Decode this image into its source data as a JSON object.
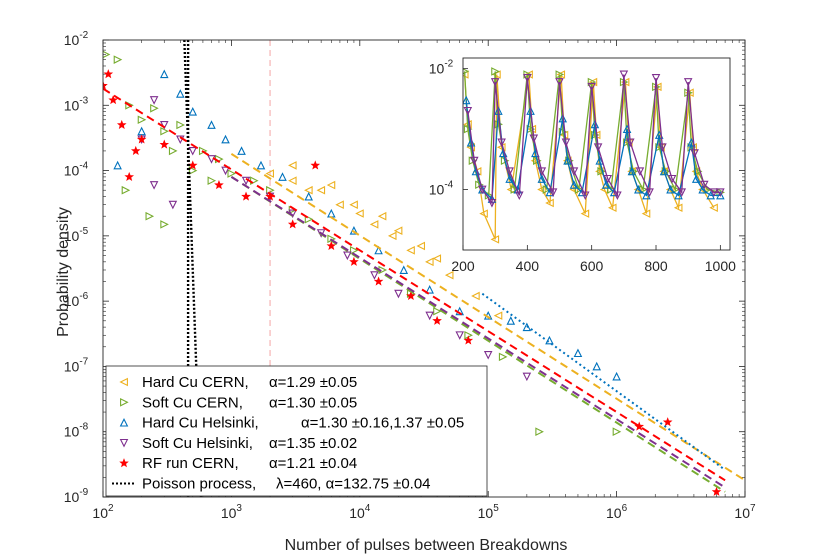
{
  "chart_data": [
    {
      "type": "scatter",
      "scale": "log-log",
      "xlabel": "Number of pulses between Breakdowns",
      "ylabel": "Probability density",
      "xlim": [
        100,
        10000000
      ],
      "ylim": [
        1e-09,
        0.01
      ],
      "x_ticks": [
        {
          "value": 100,
          "base": "10",
          "exp": "2"
        },
        {
          "value": 1000,
          "base": "10",
          "exp": "3"
        },
        {
          "value": 10000,
          "base": "10",
          "exp": "4"
        },
        {
          "value": 100000,
          "base": "10",
          "exp": "5"
        },
        {
          "value": 1000000,
          "base": "10",
          "exp": "6"
        },
        {
          "value": 10000000,
          "base": "10",
          "exp": "7"
        }
      ],
      "y_ticks": [
        {
          "value": 1e-09,
          "base": "10",
          "exp": "-9"
        },
        {
          "value": 1e-08,
          "base": "10",
          "exp": "-8"
        },
        {
          "value": 1e-07,
          "base": "10",
          "exp": "-7"
        },
        {
          "value": 1e-06,
          "base": "10",
          "exp": "-6"
        },
        {
          "value": 1e-05,
          "base": "10",
          "exp": "-5"
        },
        {
          "value": 0.0001,
          "base": "10",
          "exp": "-4"
        },
        {
          "value": 0.001,
          "base": "10",
          "exp": "-3"
        },
        {
          "value": 0.01,
          "base": "10",
          "exp": "-2"
        }
      ],
      "vertical_reference_lines": [
        {
          "x": 460,
          "style": "dotted",
          "color": "#000000"
        },
        {
          "x": 2000,
          "style": "dashed",
          "color": "#f4a6a6"
        }
      ],
      "series": [
        {
          "name": "Hard Cu CERN",
          "marker": "triangle-left",
          "color": "#EDB120",
          "fit": {
            "x": [
              1000,
              10000000
            ],
            "y": [
              0.00018,
              1.8e-09
            ]
          },
          "points": [
            [
              2000,
              9e-05
            ],
            [
              3000,
              7e-05
            ],
            [
              4000,
              5e-05
            ],
            [
              5000,
              5e-05
            ],
            [
              7000,
              3e-05
            ],
            [
              10000,
              2.2e-05
            ],
            [
              13000,
              1.5e-05
            ],
            [
              18000,
              1e-05
            ],
            [
              25000,
              6e-06
            ],
            [
              35000,
              4e-06
            ],
            [
              50000,
              2.5e-06
            ],
            [
              80000,
              1.2e-06
            ],
            [
              120000,
              6e-07
            ],
            [
              3000,
              0.00012
            ],
            [
              6000,
              6e-05
            ],
            [
              9000,
              3e-05
            ],
            [
              15000,
              2e-05
            ],
            [
              20000,
              1.2e-05
            ],
            [
              30000,
              7e-06
            ],
            [
              40000,
              4.5e-06
            ]
          ]
        },
        {
          "name": "Soft Cu CERN",
          "marker": "triangle-right",
          "color": "#77AC30",
          "fit": {
            "x": [
              1000,
              7000000
            ],
            "y": [
              8e-05,
              1.2e-09
            ]
          },
          "points": [
            [
              105,
              0.006
            ],
            [
              130,
              0.005
            ],
            [
              160,
              0.001
            ],
            [
              200,
              0.0006
            ],
            [
              250,
              0.0009
            ],
            [
              300,
              0.0004
            ],
            [
              350,
              0.0002
            ],
            [
              400,
              0.0005
            ],
            [
              500,
              0.0001
            ],
            [
              600,
              0.0002
            ],
            [
              700,
              7e-05
            ],
            [
              800,
              0.00015
            ],
            [
              1000,
              9e-05
            ],
            [
              1500,
              7e-05
            ],
            [
              2000,
              5e-05
            ],
            [
              3000,
              2.5e-05
            ],
            [
              4000,
              1.8e-05
            ],
            [
              6000,
              9e-06
            ],
            [
              9000,
              6e-06
            ],
            [
              15000,
              3e-06
            ],
            [
              25000,
              1.3e-06
            ],
            [
              40000,
              7e-07
            ],
            [
              70000,
              3e-07
            ],
            [
              130000,
              1.4e-07
            ],
            [
              250000,
              1e-08
            ],
            [
              1000000,
              1e-08
            ],
            [
              150,
              5e-05
            ],
            [
              230,
              2e-05
            ],
            [
              300,
              1.5e-05
            ]
          ]
        },
        {
          "name": "Hard Cu Helsinki",
          "marker": "triangle-up",
          "color": "#0072BD",
          "fit": {
            "x": [
              90000,
              7000000
            ],
            "y": [
              1.3e-06,
              2.6e-09
            ]
          },
          "points": [
            [
              300,
              0.003
            ],
            [
              400,
              0.0015
            ],
            [
              500,
              0.0008
            ],
            [
              700,
              0.0005
            ],
            [
              900,
              0.0003
            ],
            [
              1200,
              0.0002
            ],
            [
              1700,
              0.00012
            ],
            [
              2500,
              8e-05
            ],
            [
              4000,
              4e-05
            ],
            [
              6000,
              2.2e-05
            ],
            [
              9000,
              1.2e-05
            ],
            [
              14000,
              6e-06
            ],
            [
              22000,
              3e-06
            ],
            [
              35000,
              1.5e-06
            ],
            [
              60000,
              7e-07
            ],
            [
              100000,
              6e-07
            ],
            [
              150000,
              5e-07
            ],
            [
              200000,
              4e-07
            ],
            [
              300000,
              2.5e-07
            ],
            [
              500000,
              1.6e-07
            ],
            [
              700000,
              1e-07
            ],
            [
              1000000,
              7e-08
            ],
            [
              130,
              0.00012
            ],
            [
              200,
              0.0004
            ]
          ]
        },
        {
          "name": "Soft Cu Helsinki",
          "marker": "triangle-down",
          "color": "#7E2F8E",
          "fit": {
            "x": [
              1000,
              7000000
            ],
            "y": [
              8e-05,
              1.4e-09
            ]
          },
          "points": [
            [
              200,
              0.0003
            ],
            [
              250,
              0.0012
            ],
            [
              300,
              0.0005
            ],
            [
              400,
              0.0003
            ],
            [
              500,
              0.0002
            ],
            [
              700,
              0.00015
            ],
            [
              900,
              0.0001
            ],
            [
              1300,
              7e-05
            ],
            [
              2000,
              4e-05
            ],
            [
              3000,
              2.2e-05
            ],
            [
              5000,
              1.1e-05
            ],
            [
              8000,
              5e-06
            ],
            [
              13000,
              2.5e-06
            ],
            [
              20000,
              1.3e-06
            ],
            [
              35000,
              6e-07
            ],
            [
              60000,
              3e-07
            ],
            [
              100000,
              1.5e-07
            ],
            [
              200000,
              7e-08
            ],
            [
              250,
              6e-05
            ],
            [
              350,
              3e-05
            ]
          ]
        },
        {
          "name": "RF run CERN",
          "marker": "star",
          "color": "#FF0000",
          "fit": {
            "x": [
              100,
              7000000
            ],
            "y": [
              0.0018,
              1.8e-09
            ]
          },
          "points": [
            [
              100,
              0.002
            ],
            [
              110,
              0.003
            ],
            [
              120,
              0.0012
            ],
            [
              140,
              0.0005
            ],
            [
              160,
              8e-05
            ],
            [
              180,
              0.0002
            ],
            [
              200,
              0.0003
            ],
            [
              300,
              0.00025
            ],
            [
              500,
              0.00012
            ],
            [
              800,
              6e-05
            ],
            [
              1300,
              4e-05
            ],
            [
              2000,
              4e-05
            ],
            [
              3000,
              1.5e-05
            ],
            [
              4500,
              0.00012
            ],
            [
              6000,
              7e-06
            ],
            [
              9000,
              4e-06
            ],
            [
              14000,
              2e-06
            ],
            [
              25000,
              1.2e-06
            ],
            [
              40000,
              5e-07
            ],
            [
              70000,
              2.5e-07
            ],
            [
              1500000,
              1.2e-08
            ],
            [
              2500000,
              1.4e-08
            ],
            [
              6000000,
              1.2e-09
            ]
          ]
        },
        {
          "name": "Poisson process",
          "marker": "none",
          "color": "#000000",
          "fit": {
            "x": [
              430,
              580
            ],
            "y": [
              0.01,
              1e-09
            ]
          }
        }
      ],
      "legend": {
        "position": "bottom-left",
        "entries": [
          {
            "label": "Hard Cu CERN,",
            "params": "α=1.29  ±0.05"
          },
          {
            "label": "Soft Cu CERN,",
            "params": "α=1.30  ±0.05"
          },
          {
            "label": "Hard Cu Helsinki,",
            "params": "α=1.30  ±0.16,1.37  ±0.05"
          },
          {
            "label": "Soft Cu Helsinki,",
            "params": "α=1.35  ±0.02"
          },
          {
            "label": "RF run CERN,",
            "params": "α=1.21  ±0.04"
          },
          {
            "label": "Poisson process,",
            "params": "λ=460,   α=132.75  ±0.04"
          }
        ]
      }
    },
    {
      "type": "line",
      "scale": "linear-x, log-y",
      "xlim": [
        200,
        1030
      ],
      "ylim": [
        1e-05,
        0.015
      ],
      "x_ticks": [
        "200",
        "400",
        "600",
        "800",
        "1000"
      ],
      "y_ticks": [
        {
          "value": 0.01,
          "base": "10",
          "exp": "-2"
        },
        {
          "value": 0.0001,
          "base": "10",
          "exp": "-4"
        }
      ],
      "series": [
        {
          "name": "Hard Cu CERN",
          "color": "#EDB120",
          "marker": "triangle-left",
          "x": [
            205,
            215,
            225,
            245,
            265,
            300,
            305,
            320,
            350,
            405,
            415,
            425,
            445,
            470,
            505,
            515,
            525,
            545,
            580,
            605,
            615,
            625,
            640,
            665,
            705,
            715,
            725,
            745,
            770,
            805,
            815,
            825,
            845,
            870,
            905,
            915,
            925,
            945,
            980
          ],
          "y": [
            0.008,
            0.0012,
            0.0005,
            0.0002,
            4e-05,
            1.5e-05,
            0.008,
            0.0005,
            0.0001,
            0.008,
            0.001,
            0.0003,
            0.0001,
            6e-05,
            0.008,
            0.0008,
            0.0003,
            0.0001,
            4e-05,
            0.006,
            0.0008,
            0.0002,
            0.0001,
            5e-05,
            0.006,
            0.0006,
            0.0002,
            0.0001,
            4e-05,
            0.005,
            0.0005,
            0.0002,
            0.0001,
            5e-05,
            0.004,
            0.0005,
            0.0002,
            0.0001,
            5e-05
          ]
        },
        {
          "name": "Soft Cu CERN",
          "color": "#77AC30",
          "marker": "triangle-right",
          "x": [
            205,
            215,
            230,
            250,
            280,
            300,
            310,
            330,
            360,
            400,
            410,
            430,
            460,
            500,
            510,
            530,
            560,
            600,
            610,
            630,
            660,
            700,
            710,
            730,
            760,
            800,
            810,
            830,
            860,
            900,
            910,
            930,
            960,
            1000
          ],
          "y": [
            0.009,
            0.001,
            0.0003,
            0.00012,
            8e-05,
            0.009,
            0.0012,
            0.0003,
            0.0001,
            0.008,
            0.001,
            0.0003,
            0.0001,
            0.008,
            0.0009,
            0.0003,
            0.0001,
            0.006,
            0.0008,
            0.0002,
            0.0001,
            0.006,
            0.0006,
            0.0002,
            0.0001,
            0.005,
            0.0005,
            0.0002,
            0.0001,
            0.004,
            0.0005,
            0.0002,
            0.0001,
            9e-05
          ]
        },
        {
          "name": "Hard Cu Helsinki",
          "color": "#0072BD",
          "marker": "triangle-up",
          "x": [
            210,
            225,
            240,
            260,
            290,
            310,
            325,
            345,
            370,
            410,
            425,
            445,
            470,
            510,
            525,
            545,
            570,
            610,
            625,
            645,
            670,
            710,
            725,
            745,
            770,
            810,
            825,
            845,
            870,
            910,
            925,
            945,
            970,
            1000
          ],
          "y": [
            0.003,
            0.0006,
            0.0002,
            0.0001,
            7e-05,
            0.002,
            0.0004,
            0.00015,
            0.0001,
            0.002,
            0.0004,
            0.00015,
            9e-05,
            0.0015,
            0.0003,
            0.00012,
            9e-05,
            0.0012,
            0.0003,
            0.00012,
            9e-05,
            0.001,
            0.0002,
            0.0001,
            8e-05,
            0.0008,
            0.0002,
            0.0001,
            8e-05,
            0.0006,
            0.00015,
            0.0001,
            8e-05,
            8e-05
          ]
        },
        {
          "name": "Soft Cu Helsinki",
          "color": "#7E2F8E",
          "marker": "triangle-down",
          "x": [
            215,
            235,
            260,
            290,
            300,
            320,
            345,
            375,
            400,
            420,
            445,
            480,
            500,
            520,
            545,
            580,
            600,
            620,
            650,
            680,
            700,
            720,
            750,
            780,
            800,
            820,
            850,
            880,
            900,
            920,
            950,
            980,
            1000
          ],
          "y": [
            0.002,
            0.0003,
            0.0001,
            6e-05,
            0.006,
            0.0006,
            0.0002,
            8e-05,
            0.007,
            0.0007,
            0.0002,
            9e-05,
            0.006,
            0.0006,
            0.0002,
            8e-05,
            0.005,
            0.0005,
            0.00015,
            8e-05,
            0.008,
            0.0006,
            0.0002,
            9e-05,
            0.007,
            0.0005,
            0.00015,
            9e-05,
            0.006,
            0.0004,
            0.00012,
            9e-05,
            9e-05
          ]
        }
      ]
    }
  ]
}
